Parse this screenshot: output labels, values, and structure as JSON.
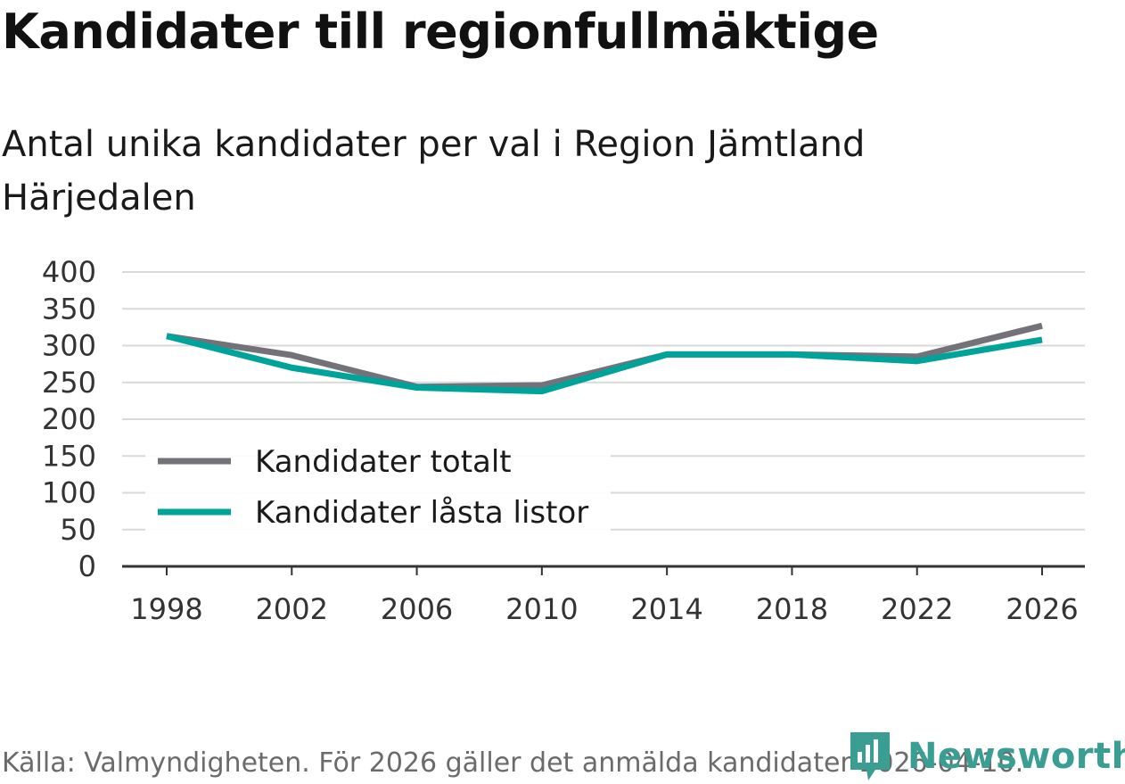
{
  "header": {
    "title": "Kandidater till regionfullmäktige",
    "subtitle": "Antal unika kandidater per val i Region Jämtland Härjedalen"
  },
  "footer": {
    "source": "Källa: Valmyndigheten. För 2026 gäller det anmälda kandidater 2026-04-10.",
    "brand": "Newsworthy"
  },
  "colors": {
    "series_total": "#737278",
    "series_locked": "#00a39a",
    "grid": "#d9d9d9",
    "axis": "#333333",
    "brand": "#3a9e92"
  },
  "chart_data": {
    "type": "line",
    "title": "Kandidater till regionfullmäktige",
    "subtitle": "Antal unika kandidater per val i Region Jämtland Härjedalen",
    "xlabel": "",
    "ylabel": "",
    "x": [
      1998,
      2002,
      2006,
      2010,
      2014,
      2018,
      2022,
      2026
    ],
    "x_ticks": [
      "1998",
      "2002",
      "2006",
      "2010",
      "2014",
      "2018",
      "2022",
      "2026"
    ],
    "y_ticks": [
      "0",
      "50",
      "100",
      "150",
      "200",
      "250",
      "300",
      "350",
      "400"
    ],
    "ylim": [
      0,
      400
    ],
    "grid": true,
    "legend_position": "lower-left",
    "series": [
      {
        "name": "Kandidater totalt",
        "color": "#737278",
        "values": [
          313,
          287,
          244,
          246,
          288,
          288,
          285,
          327
        ]
      },
      {
        "name": "Kandidater låsta listor",
        "color": "#00a39a",
        "values": [
          313,
          270,
          243,
          238,
          288,
          288,
          279,
          308
        ]
      }
    ]
  }
}
